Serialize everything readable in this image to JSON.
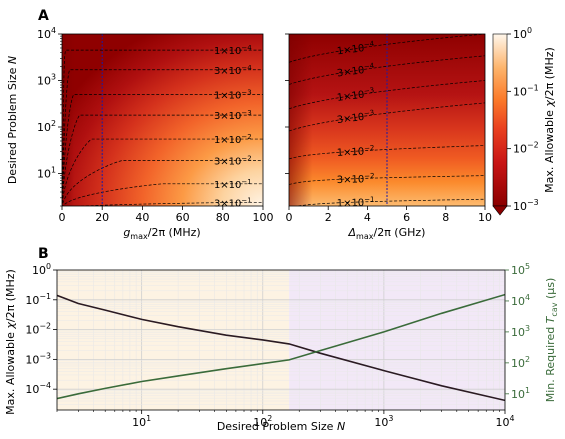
{
  "colors": {
    "heat_dark": "#8b0000",
    "heat_mid": "#e5321d",
    "heat_orange": "#fb8c2c",
    "heat_light": "#fff4e6",
    "fidelity_line": "#2a1a22",
    "time_line": "#3a6b3a",
    "time_axis": "#3a6b3a",
    "bg_left": "#fdf3e3",
    "bg_right": "#f2e8f7",
    "marker_line": "#1a1aa6"
  },
  "panels": {
    "a_label": "A",
    "b_label": "B"
  },
  "chart_data": [
    {
      "type": "heatmap",
      "title": "",
      "xlabel_main": "g",
      "xlabel_sub": "max",
      "xlabel_tail": "/2π (MHz)",
      "ylabel_main": "Desired Problem Size ",
      "ylabel_var": "N",
      "x_ticks": [
        "0",
        "20",
        "40",
        "60",
        "80",
        "100"
      ],
      "xlim": [
        0,
        100
      ],
      "y_scale": "log",
      "ylim": [
        2,
        10000
      ],
      "y_ticks": [
        {
          "base": "10",
          "exp": "4"
        },
        {
          "base": "10",
          "exp": "3"
        },
        {
          "base": "10",
          "exp": "2"
        },
        {
          "base": "10",
          "exp": "1"
        }
      ],
      "marker_x": 20,
      "contours": [
        {
          "coef": "1",
          "exp": "−4",
          "knee": 2,
          "N": 4500
        },
        {
          "coef": "3",
          "exp": "−4",
          "knee": 4,
          "N": 1700
        },
        {
          "coef": "1",
          "exp": "−3",
          "knee": 6,
          "N": 500
        },
        {
          "coef": "3",
          "exp": "−3",
          "knee": 9,
          "N": 180
        },
        {
          "coef": "1",
          "exp": "−2",
          "knee": 15,
          "N": 55
        },
        {
          "coef": "3",
          "exp": "−2",
          "knee": 30,
          "N": 19
        },
        {
          "coef": "1",
          "exp": "−1",
          "knee": 50,
          "N": 6
        },
        {
          "coef": "3",
          "exp": "−1",
          "knee": 90,
          "N": 2.4
        }
      ],
      "label_x": 85
    },
    {
      "type": "heatmap",
      "title": "",
      "xlabel_main": "Δ",
      "xlabel_sub": "max",
      "xlabel_tail": "/2π (GHz)",
      "x_ticks": [
        "0",
        "2",
        "4",
        "6",
        "8",
        "10"
      ],
      "xlim": [
        0,
        10
      ],
      "y_scale": "log",
      "ylim": [
        2,
        10000
      ],
      "marker_x": 5,
      "contours": [
        {
          "coef": "1",
          "exp": "−4",
          "N0": 3000,
          "N1": 10000
        },
        {
          "coef": "3",
          "exp": "−4",
          "N0": 1000,
          "N1": 3400
        },
        {
          "coef": "1",
          "exp": "−3",
          "N0": 300,
          "N1": 1000
        },
        {
          "coef": "3",
          "exp": "−3",
          "N0": 100,
          "N1": 330
        },
        {
          "coef": "1",
          "exp": "−2",
          "N0": 25,
          "N1": 40
        },
        {
          "coef": "3",
          "exp": "−2",
          "N0": 7,
          "N1": 9
        },
        {
          "coef": "1",
          "exp": "−1",
          "N0": 2.2,
          "N1": 2.8
        }
      ],
      "label_x": 3.4,
      "colorbar": {
        "label_main": "Max. Allowable ",
        "label_var": "χ",
        "label_tail": "/2π (MHz)",
        "scale": "log",
        "range": [
          0.001,
          1
        ],
        "ticks": [
          {
            "base": "10",
            "exp": "0"
          },
          {
            "base": "10",
            "exp": "−1"
          },
          {
            "base": "10",
            "exp": "−2"
          },
          {
            "base": "10",
            "exp": "−3"
          }
        ]
      }
    },
    {
      "type": "line",
      "title": "",
      "xlabel_main": "Desired Problem Size ",
      "xlabel_var": "N",
      "x_scale": "log",
      "xlim": [
        2,
        10000
      ],
      "x_ticks": [
        {
          "base": "10",
          "exp": "1"
        },
        {
          "base": "10",
          "exp": "2"
        },
        {
          "base": "10",
          "exp": "3"
        },
        {
          "base": "10",
          "exp": "4"
        }
      ],
      "ylabel_main": "Max. Allowable ",
      "ylabel_var": "χ",
      "ylabel_tail": "/2π (MHz)",
      "y_scale": "log",
      "ylim": [
        2e-05,
        1
      ],
      "y_ticks": [
        {
          "base": "10",
          "exp": "0"
        },
        {
          "base": "10",
          "exp": "−1"
        },
        {
          "base": "10",
          "exp": "−2"
        },
        {
          "base": "10",
          "exp": "−3"
        },
        {
          "base": "10",
          "exp": "−4"
        }
      ],
      "y2label_main": "Min. Required ",
      "y2label_var": "T",
      "y2label_sub": "cav",
      "y2label_tail": " (μs)",
      "y2_scale": "log",
      "y2lim": [
        3,
        100000
      ],
      "y2_ticks": [
        {
          "base": "10",
          "exp": "5"
        },
        {
          "base": "10",
          "exp": "4"
        },
        {
          "base": "10",
          "exp": "3"
        },
        {
          "base": "10",
          "exp": "2"
        },
        {
          "base": "10",
          "exp": "1"
        }
      ],
      "shaded_boundary_x": 165,
      "series": [
        {
          "axis": "left",
          "x": [
            2,
            3,
            5,
            10,
            20,
            50,
            100,
            165,
            300,
            1000,
            3000,
            10000
          ],
          "values": [
            0.14,
            0.075,
            0.045,
            0.022,
            0.0125,
            0.0065,
            0.0045,
            0.0033,
            0.0016,
            0.00042,
            0.00013,
            4.2e-05
          ]
        },
        {
          "axis": "right",
          "x": [
            2,
            3,
            5,
            10,
            20,
            50,
            100,
            165,
            300,
            1000,
            3000,
            10000
          ],
          "values": [
            7,
            10,
            15,
            25,
            38,
            65,
            95,
            125,
            250,
            1000,
            4000,
            16000
          ]
        }
      ]
    }
  ]
}
